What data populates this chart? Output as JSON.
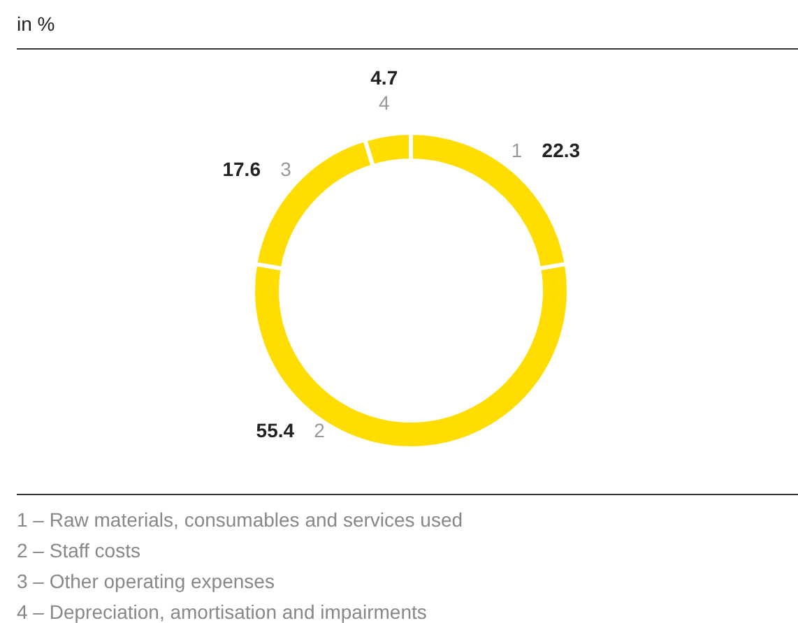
{
  "chart_data": {
    "type": "donut",
    "title": "in %",
    "categories": [
      "1",
      "2",
      "3",
      "4"
    ],
    "values": [
      22.3,
      55.4,
      17.6,
      4.7
    ],
    "colors": [
      "#ffdd00",
      "#ffdd00",
      "#ffdd00",
      "#ffdd00"
    ],
    "data_labels": true,
    "annotations": [
      "1 – Raw materials, consumables and services used",
      "2 – Staff costs",
      "3 – Other operating expenses",
      "4 – Depreciation, amortisation and impairments"
    ]
  }
}
